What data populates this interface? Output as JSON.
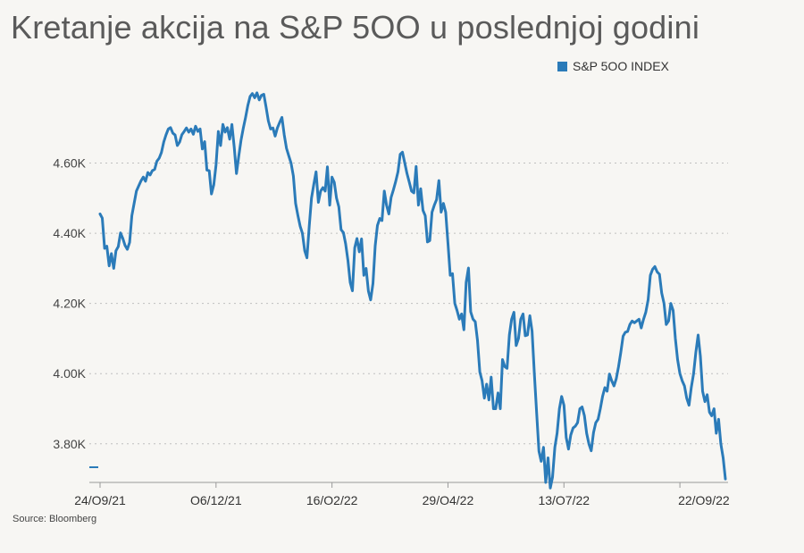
{
  "title": "Kretanje akcija na S&P 5OO u poslednjoj godini",
  "source": "Source: Bloomberg",
  "colors": {
    "line": "#2b7bb9",
    "grid": "#bfbfbf",
    "axis": "#9a9a9a"
  },
  "chart_data": {
    "type": "line",
    "title": "Kretanje akcija na S&P 5OO u poslednjoj godini",
    "xlabel": "",
    "ylabel": "",
    "ylim": [
      3690,
      4810
    ],
    "yticks": [
      3800,
      4000,
      4200,
      4400,
      4600
    ],
    "ytick_labels": [
      "3.80K",
      "4.00K",
      "4.20K",
      "4.40K",
      "4.60K"
    ],
    "xtick_labels": [
      "24/O9/21",
      "O6/12/21",
      "16/O2/22",
      "29/O4/22",
      "13/O7/22",
      "22/O9/22"
    ],
    "xtick_index": [
      0,
      51,
      102,
      153,
      204,
      255
    ],
    "grid": true,
    "legend_position": "top-right",
    "series": [
      {
        "name": "S&P 5OO INDEX",
        "values": [
          4455,
          4443,
          4357,
          4363,
          4307,
          4342,
          4300,
          4350,
          4362,
          4401,
          4385,
          4365,
          4354,
          4374,
          4450,
          4486,
          4520,
          4535,
          4549,
          4560,
          4548,
          4573,
          4566,
          4578,
          4582,
          4605,
          4614,
          4630,
          4660,
          4680,
          4697,
          4701,
          4685,
          4680,
          4650,
          4660,
          4681,
          4690,
          4700,
          4688,
          4697,
          4682,
          4705,
          4690,
          4697,
          4640,
          4661,
          4580,
          4578,
          4512,
          4538,
          4594,
          4690,
          4650,
          4710,
          4688,
          4701,
          4668,
          4710,
          4645,
          4570,
          4620,
          4665,
          4700,
          4730,
          4765,
          4790,
          4798,
          4786,
          4800,
          4780,
          4793,
          4796,
          4760,
          4720,
          4697,
          4700,
          4677,
          4700,
          4716,
          4730,
          4680,
          4642,
          4620,
          4600,
          4563,
          4485,
          4450,
          4420,
          4400,
          4350,
          4330,
          4421,
          4500,
          4540,
          4575,
          4488,
          4520,
          4530,
          4520,
          4589,
          4480,
          4560,
          4545,
          4500,
          4475,
          4410,
          4402,
          4370,
          4322,
          4260,
          4236,
          4359,
          4385,
          4347,
          4384,
          4280,
          4300,
          4235,
          4210,
          4257,
          4364,
          4422,
          4442,
          4436,
          4520,
          4480,
          4455,
          4502,
          4524,
          4547,
          4575,
          4625,
          4631,
          4600,
          4570,
          4545,
          4520,
          4515,
          4590,
          4480,
          4527,
          4465,
          4450,
          4375,
          4379,
          4460,
          4480,
          4496,
          4550,
          4460,
          4485,
          4460,
          4370,
          4280,
          4285,
          4200,
          4180,
          4155,
          4170,
          4125,
          4260,
          4301,
          4176,
          4155,
          4148,
          4095,
          4005,
          3980,
          3930,
          3970,
          3925,
          3990,
          3900,
          3900,
          3945,
          3900,
          4040,
          4020,
          4015,
          4110,
          4155,
          4175,
          4080,
          4100,
          4155,
          4170,
          4108,
          4110,
          4165,
          4121,
          3998,
          3889,
          3779,
          3750,
          3790,
          3690,
          3760,
          3674,
          3705,
          3790,
          3830,
          3900,
          3935,
          3910,
          3818,
          3785,
          3825,
          3845,
          3850,
          3860,
          3900,
          3905,
          3880,
          3830,
          3799,
          3780,
          3832,
          3860,
          3870,
          3900,
          3935,
          3960,
          3950,
          3999,
          3980,
          3965,
          3985,
          4020,
          4060,
          4107,
          4118,
          4120,
          4140,
          4150,
          4145,
          4150,
          4155,
          4130,
          4155,
          4175,
          4210,
          4280,
          4297,
          4305,
          4290,
          4283,
          4230,
          4200,
          4140,
          4150,
          4200,
          4180,
          4100,
          4040,
          4000,
          3980,
          3965,
          3930,
          3910,
          3960,
          4000,
          4060,
          4110,
          4050,
          3950,
          3920,
          3940,
          3890,
          3880,
          3900,
          3830,
          3870,
          3800,
          3760,
          3700
        ]
      }
    ]
  }
}
